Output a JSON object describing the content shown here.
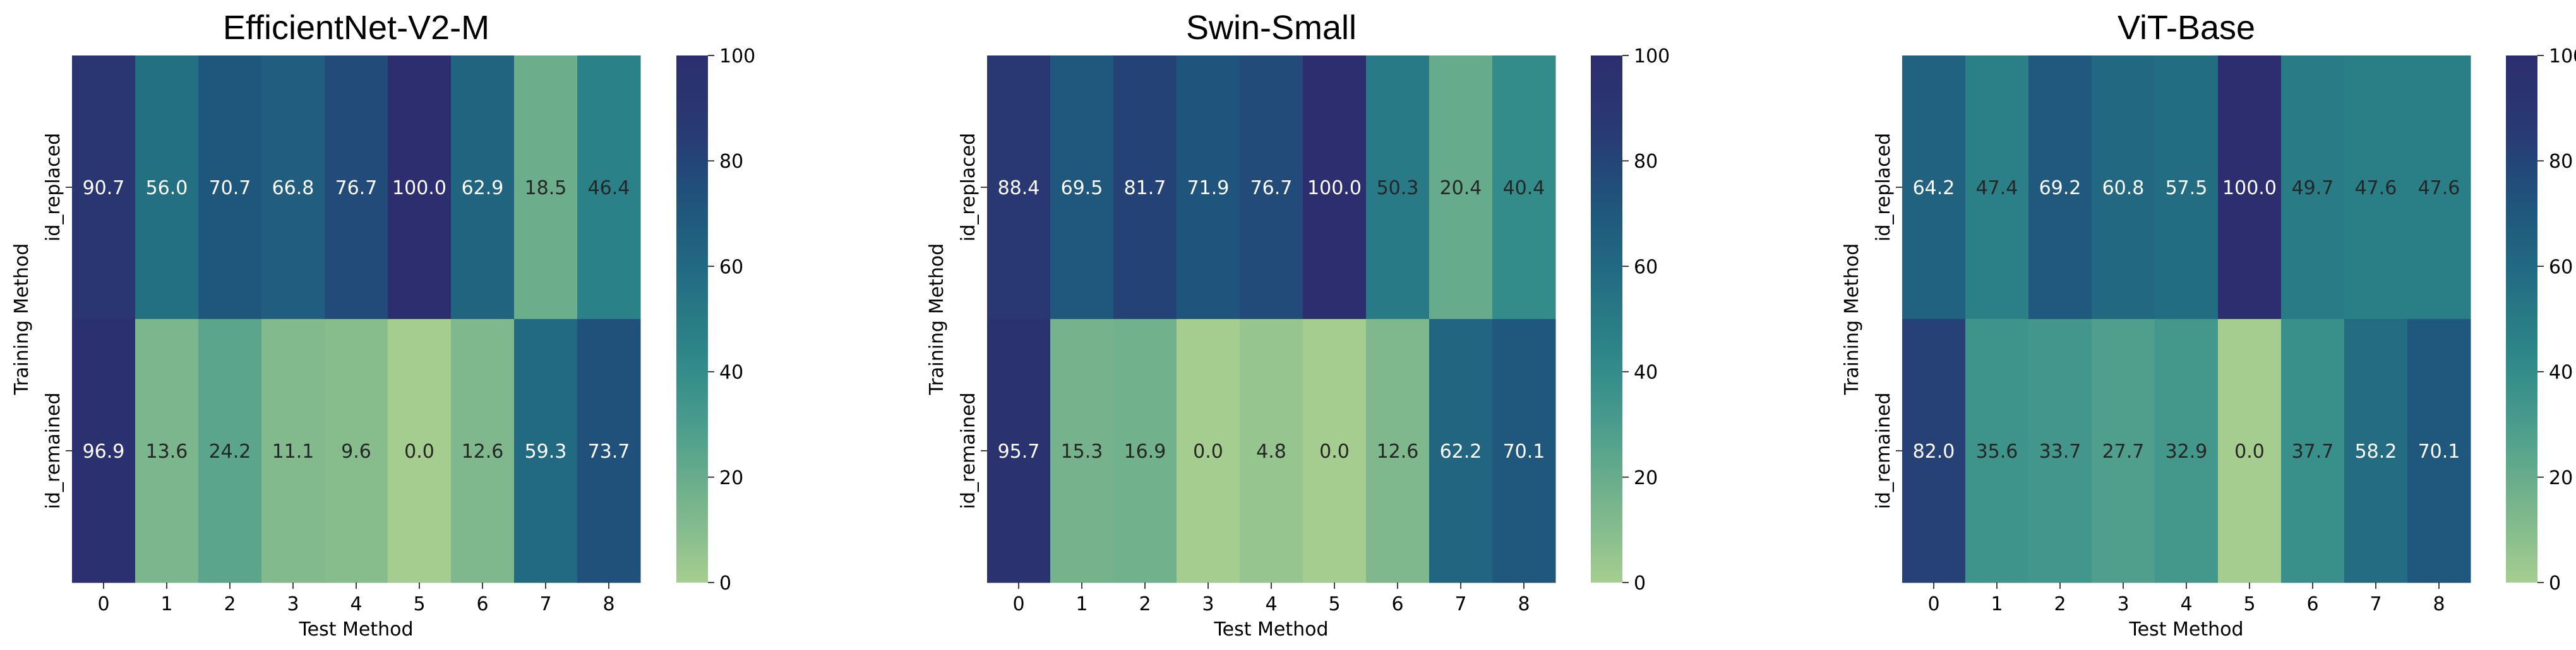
{
  "chart_data": [
    {
      "type": "heatmap",
      "title": "EfficientNet-V2-M",
      "xlabel": "Test Method",
      "ylabel": "Training Method",
      "x_categories": [
        "0",
        "1",
        "2",
        "3",
        "4",
        "5",
        "6",
        "7",
        "8"
      ],
      "y_categories": [
        "id_replaced",
        "id_remained"
      ],
      "values": [
        [
          90.7,
          56.0,
          70.7,
          66.8,
          76.7,
          100.0,
          62.9,
          18.5,
          46.4
        ],
        [
          96.9,
          13.6,
          24.2,
          11.1,
          9.6,
          0.0,
          12.6,
          59.3,
          73.7
        ]
      ],
      "colorbar": {
        "range": [
          0,
          100
        ],
        "ticks": [
          "0",
          "20",
          "40",
          "60",
          "80",
          "100"
        ]
      },
      "colormap": "crest"
    },
    {
      "type": "heatmap",
      "title": "Swin-Small",
      "xlabel": "Test Method",
      "ylabel": "Training Method",
      "x_categories": [
        "0",
        "1",
        "2",
        "3",
        "4",
        "5",
        "6",
        "7",
        "8"
      ],
      "y_categories": [
        "id_replaced",
        "id_remained"
      ],
      "values": [
        [
          88.4,
          69.5,
          81.7,
          71.9,
          76.7,
          100.0,
          50.3,
          20.4,
          40.4
        ],
        [
          95.7,
          15.3,
          16.9,
          0.0,
          4.8,
          0.0,
          12.6,
          62.2,
          70.1
        ]
      ],
      "colorbar": {
        "range": [
          0,
          100
        ],
        "ticks": [
          "0",
          "20",
          "40",
          "60",
          "80",
          "100"
        ]
      },
      "colormap": "crest"
    },
    {
      "type": "heatmap",
      "title": "ViT-Base",
      "xlabel": "Test Method",
      "ylabel": "Training Method",
      "x_categories": [
        "0",
        "1",
        "2",
        "3",
        "4",
        "5",
        "6",
        "7",
        "8"
      ],
      "y_categories": [
        "id_replaced",
        "id_remained"
      ],
      "values": [
        [
          64.2,
          47.4,
          69.2,
          60.8,
          57.5,
          100.0,
          49.7,
          47.6,
          47.6
        ],
        [
          82.0,
          35.6,
          33.7,
          27.7,
          32.9,
          0.0,
          37.7,
          58.2,
          70.1
        ]
      ],
      "colorbar": {
        "range": [
          0,
          100
        ],
        "ticks": [
          "0",
          "20",
          "40",
          "60",
          "80",
          "100"
        ]
      },
      "colormap": "crest"
    }
  ],
  "colors": {
    "crest_stops": [
      "#a5cd90",
      "#79b58c",
      "#4d9e8c",
      "#2e8789",
      "#236e83",
      "#1f557c",
      "#283a73",
      "#2c2e6f"
    ],
    "label_dark": "#262626",
    "label_light": "#ffffff"
  }
}
